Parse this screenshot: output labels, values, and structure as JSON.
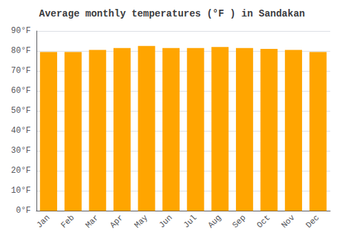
{
  "chart_data": {
    "type": "bar",
    "title": "Average monthly temperatures (°F ) in Sandakan",
    "categories": [
      "Jan",
      "Feb",
      "Mar",
      "Apr",
      "May",
      "Jun",
      "Jul",
      "Aug",
      "Sep",
      "Oct",
      "Nov",
      "Dec"
    ],
    "values": [
      79.5,
      79.5,
      80.5,
      81.5,
      82.5,
      81.5,
      81.5,
      82.0,
      81.5,
      81.0,
      80.5,
      79.5
    ],
    "color": "#FFA500",
    "ylim": [
      0,
      90
    ],
    "yticks": [
      {
        "value": 0,
        "label": "0°F"
      },
      {
        "value": 10,
        "label": "10°F"
      },
      {
        "value": 20,
        "label": "20°F"
      },
      {
        "value": 30,
        "label": "30°F"
      },
      {
        "value": 40,
        "label": "40°F"
      },
      {
        "value": 50,
        "label": "50°F"
      },
      {
        "value": 60,
        "label": "60°F"
      },
      {
        "value": 70,
        "label": "70°F"
      },
      {
        "value": 80,
        "label": "80°F"
      },
      {
        "value": 90,
        "label": "90°F"
      }
    ],
    "grid": true
  }
}
